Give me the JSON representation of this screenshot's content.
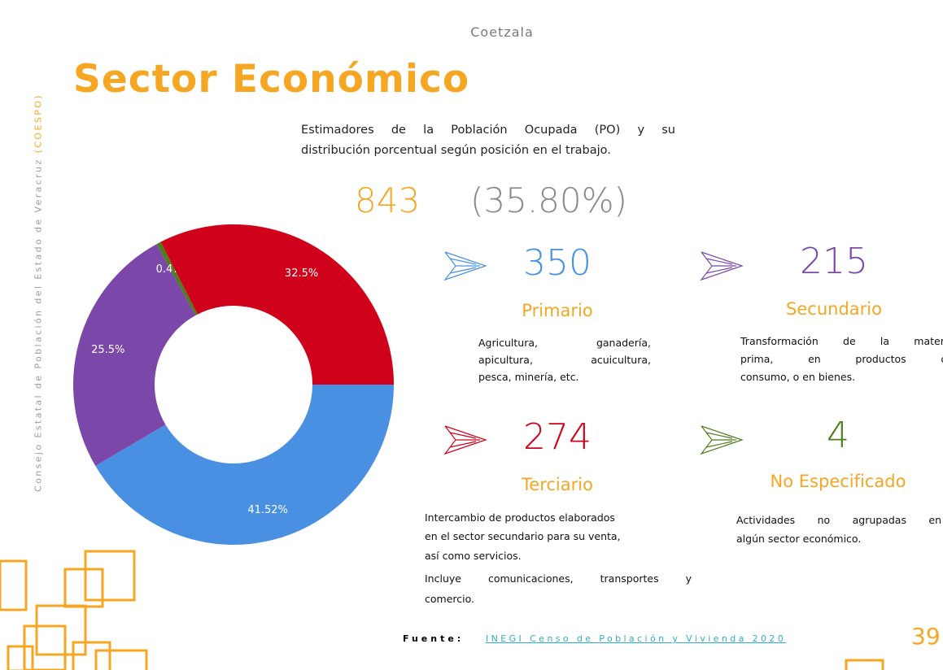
{
  "header": {
    "place": "Coetzala",
    "title": "Sector Económico",
    "side_text": "Consejo Estatal de Población del Estado de Veracruz",
    "side_acronym": "(COESPO)"
  },
  "summary": {
    "lines": [
      "Estimadores de la Población Ocupada (PO) y su",
      "distribución porcentual según posición en el trabajo."
    ],
    "total": "843",
    "percent": "(35.80%)"
  },
  "sectors": [
    {
      "value": "350",
      "label": "Primario",
      "lines": [
        "Agricultura, ganadería,",
        "apicultura, acuicultura,",
        "pesca, minería, etc."
      ]
    },
    {
      "value": "215",
      "label": "Secundario",
      "lines": [
        "Transformación de la materia",
        "prima, en productos de",
        "consumo, o en bienes."
      ]
    },
    {
      "value": "274",
      "label": "Terciario",
      "lines": [
        "Intercambio de productos elaborados",
        "en el sector secundario para su venta,",
        "así como servicios.",
        "Incluye comunicaciones, transportes y",
        "comercio."
      ]
    },
    {
      "value": "4",
      "label": "No Especificado",
      "lines": [
        "Actividades no agrupadas en",
        "algún sector económico."
      ]
    }
  ],
  "chart_data": {
    "type": "donut",
    "values": [
      41.52,
      25.5,
      0.47,
      32.5
    ],
    "value_labels": [
      "41.52%",
      "25.5%",
      "0.47%",
      "32.5%"
    ],
    "colors": [
      "#4a90e2",
      "#7b47a8",
      "#4e7d1e",
      "#d0021b"
    ]
  },
  "footer": {
    "source_label": "Fuente:",
    "source_link": "INEGI Censo de Población y Vivienda 2020",
    "page": "39"
  }
}
